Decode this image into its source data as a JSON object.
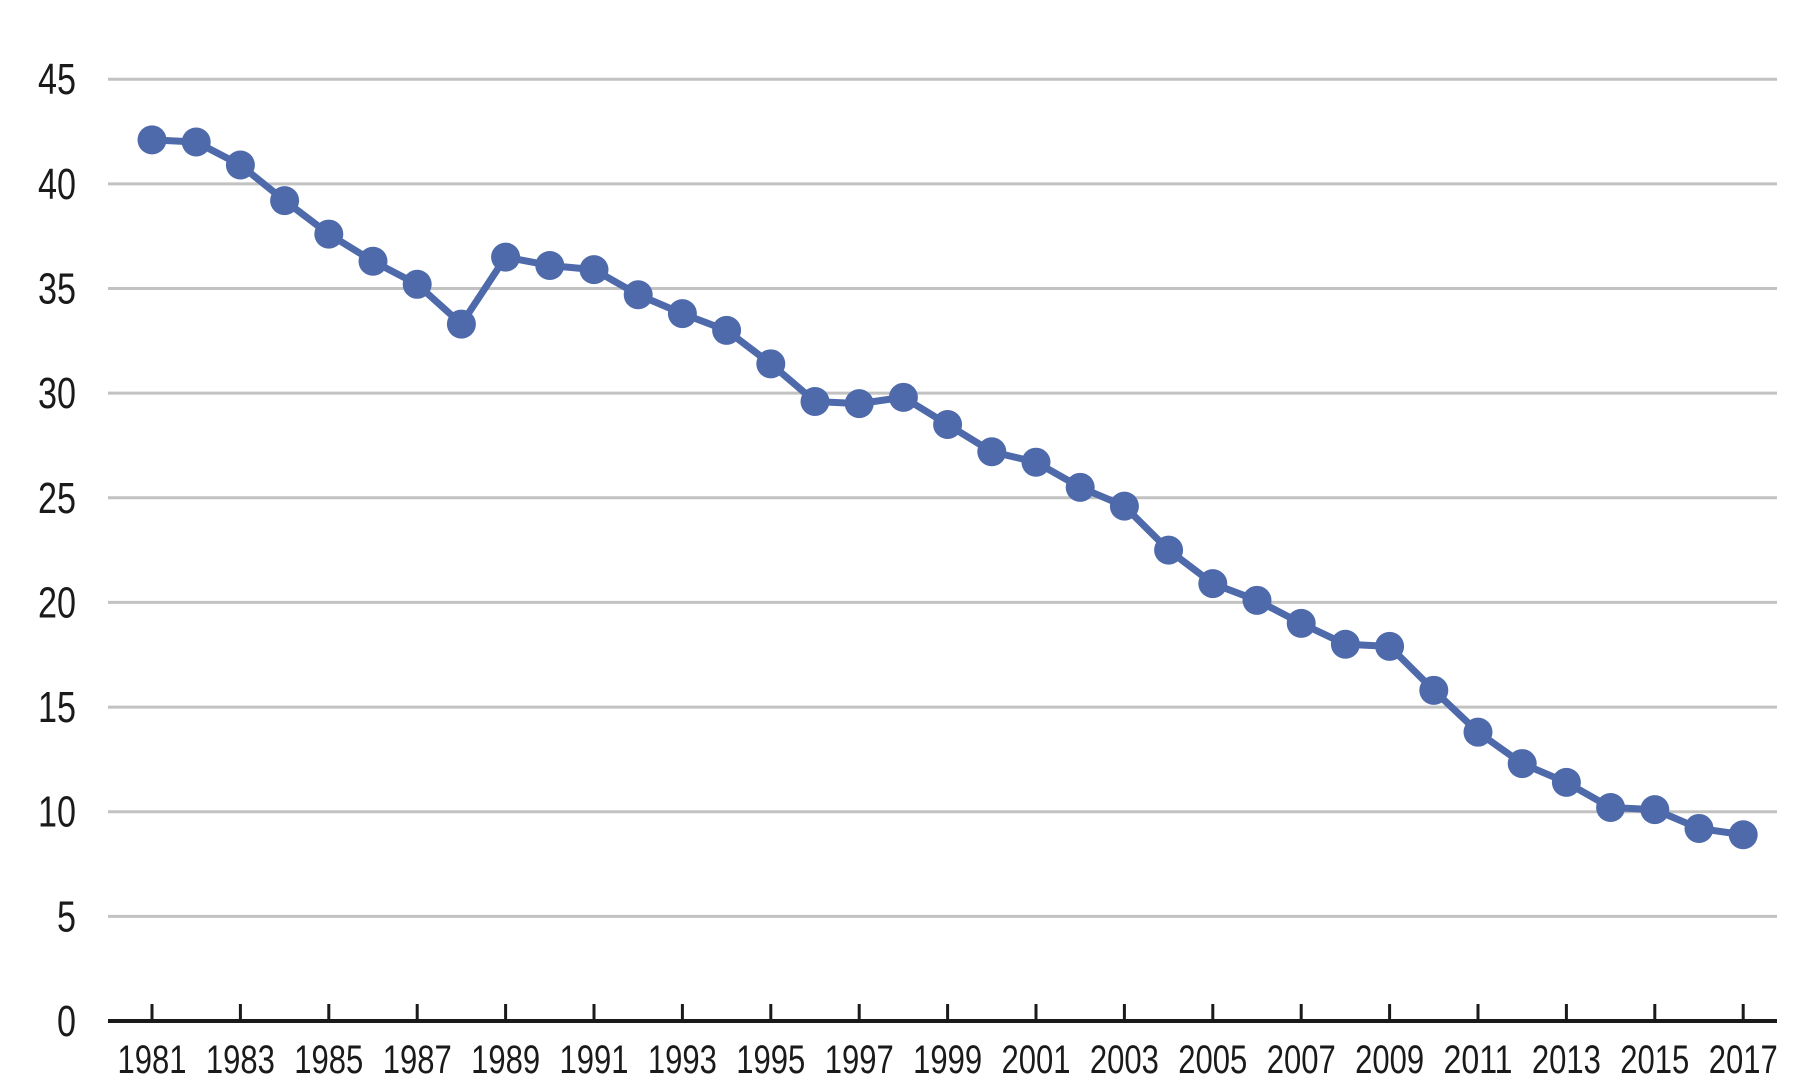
{
  "chart_data": {
    "type": "line",
    "title": "",
    "xlabel": "",
    "ylabel": "",
    "legend": "none",
    "grid": "horizontal",
    "marker": "circle",
    "x": [
      1981,
      1982,
      1983,
      1984,
      1985,
      1986,
      1987,
      1988,
      1989,
      1990,
      1991,
      1992,
      1993,
      1994,
      1995,
      1996,
      1997,
      1998,
      1999,
      2000,
      2001,
      2002,
      2003,
      2004,
      2005,
      2006,
      2007,
      2008,
      2009,
      2010,
      2011,
      2012,
      2013,
      2014,
      2015,
      2016,
      2017
    ],
    "series": [
      {
        "name": "series-1",
        "values": [
          42.1,
          42.0,
          40.9,
          39.2,
          37.6,
          36.3,
          35.2,
          33.3,
          36.5,
          36.1,
          35.9,
          34.7,
          33.8,
          33.0,
          31.4,
          29.6,
          29.5,
          29.8,
          28.5,
          27.2,
          26.7,
          25.5,
          24.6,
          22.5,
          20.9,
          20.1,
          19.0,
          18.0,
          17.9,
          15.8,
          13.8,
          12.3,
          11.4,
          10.2,
          10.1,
          9.2,
          8.9
        ]
      }
    ],
    "x_tick_labels": [
      "1981",
      "1983",
      "1985",
      "1987",
      "1989",
      "1991",
      "1993",
      "1995",
      "1997",
      "1999",
      "2001",
      "2003",
      "2005",
      "2007",
      "2009",
      "2011",
      "2013",
      "2015",
      "2017"
    ],
    "y_tick_labels": [
      "0",
      "5",
      "10",
      "15",
      "20",
      "25",
      "30",
      "35",
      "40",
      "45"
    ],
    "y_ticks": [
      0,
      5,
      10,
      15,
      20,
      25,
      30,
      35,
      40,
      45
    ],
    "ylim": [
      0,
      45
    ],
    "colors": {
      "line": "#4E6AAB",
      "marker": "#4E6AAB",
      "gridline": "#C2C2C2",
      "axis": "#1A1A1A",
      "tick": "#1A1A1A",
      "label_text": "#1A1A1A",
      "background": "#FFFFFF"
    }
  }
}
